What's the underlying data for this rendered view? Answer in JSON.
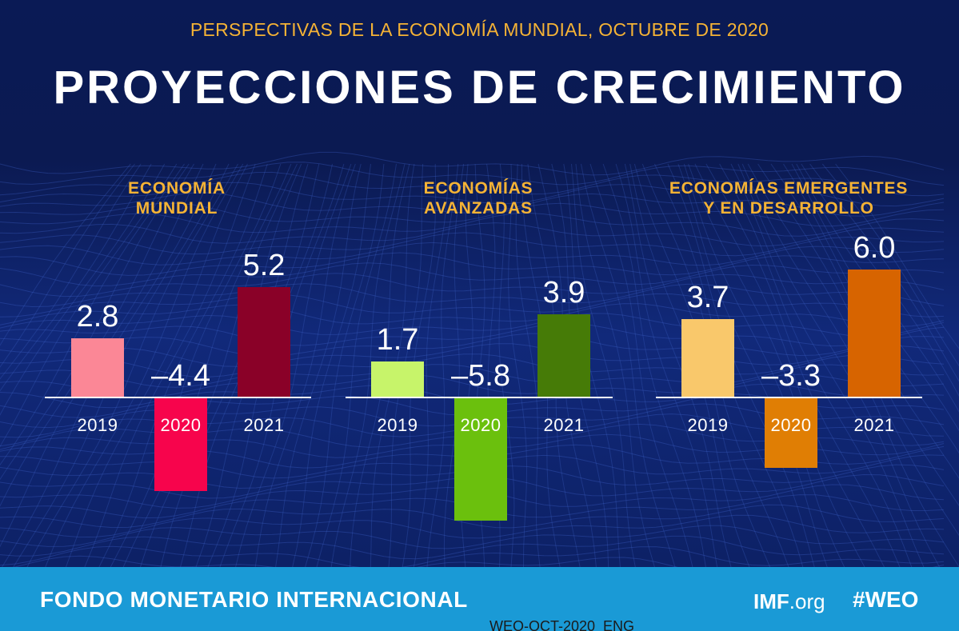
{
  "header": {
    "subtitle": "PERSPECTIVAS DE LA ECONOMÍA MUNDIAL, OCTUBRE DE 2020",
    "title": "PROYECCIONES DE CRECIMIENTO"
  },
  "colors": {
    "background": "#0b1a52",
    "accent_gold": "#f5b335",
    "footer_band": "#1a9ad6",
    "baseline": "#ffffff"
  },
  "chart_data": [
    {
      "type": "bar",
      "title_lines": [
        "ECONOMÍA",
        "MUNDIAL"
      ],
      "categories": [
        "2019",
        "2020",
        "2021"
      ],
      "values": [
        2.8,
        -4.4,
        5.2
      ],
      "labels": [
        "2.8",
        "–4.4",
        "5.2"
      ],
      "colors": [
        "#fb8796",
        "#f7044c",
        "#8a0128"
      ]
    },
    {
      "type": "bar",
      "title_lines": [
        "ECONOMÍAS",
        "AVANZADAS"
      ],
      "categories": [
        "2019",
        "2020",
        "2021"
      ],
      "values": [
        1.7,
        -5.8,
        3.9
      ],
      "labels": [
        "1.7",
        "–5.8",
        "3.9"
      ],
      "colors": [
        "#c7f46a",
        "#6bc00d",
        "#467b07"
      ]
    },
    {
      "type": "bar",
      "title_lines": [
        "ECONOMÍAS EMERGENTES",
        "Y EN DESARROLLO"
      ],
      "categories": [
        "2019",
        "2020",
        "2021"
      ],
      "values": [
        3.7,
        -3.3,
        6.0
      ],
      "labels": [
        "3.7",
        "–3.3",
        "6.0"
      ],
      "colors": [
        "#f9c86b",
        "#e07e04",
        "#d76400"
      ]
    }
  ],
  "footer": {
    "organization": "FONDO MONETARIO INTERNACIONAL",
    "site_bold": "IMF",
    "site_rest": ".org",
    "hashtag": "#WEO",
    "code": "WEO-OCT-2020_ENG"
  }
}
